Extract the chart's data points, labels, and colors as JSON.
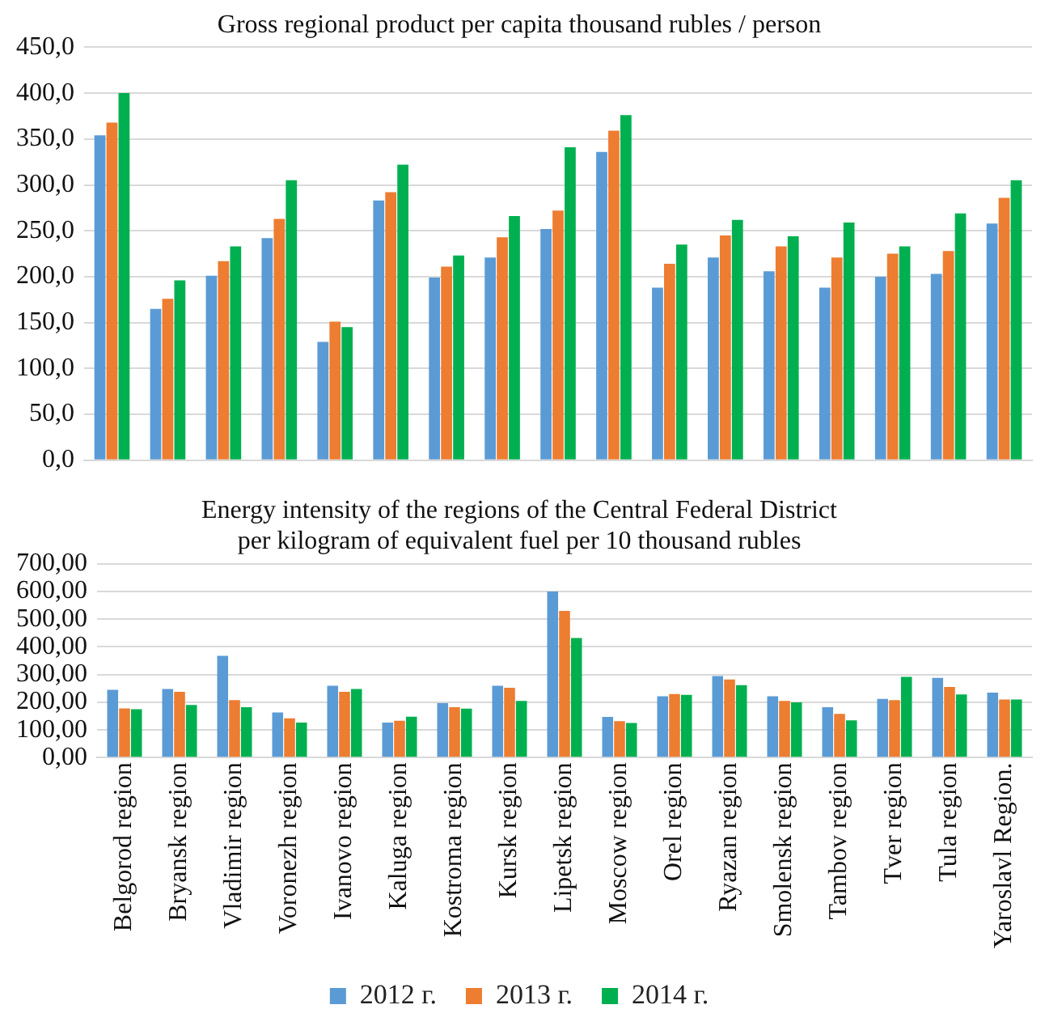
{
  "chart_data": [
    {
      "type": "bar",
      "title": "Gross regional product per capita thousand rubles / person",
      "categories": [
        null,
        null,
        null,
        null,
        null,
        null,
        null,
        null,
        null,
        null,
        null,
        null,
        null,
        null,
        null,
        null,
        null
      ],
      "series": [
        {
          "color": "#5b9bd5",
          "values": [
            354,
            165,
            201,
            242,
            129,
            283,
            199,
            221,
            252,
            336,
            188,
            221,
            206,
            188,
            200,
            203,
            258
          ]
        },
        {
          "color": "#ed7d31",
          "values": [
            368,
            176,
            217,
            263,
            151,
            292,
            211,
            243,
            272,
            359,
            214,
            245,
            233,
            221,
            225,
            228,
            286
          ]
        },
        {
          "color": "#00b050",
          "values": [
            400,
            196,
            233,
            305,
            145,
            322,
            223,
            266,
            341,
            376,
            235,
            262,
            244,
            259,
            233,
            269,
            305
          ]
        }
      ],
      "ylim": [
        0,
        450
      ],
      "yticks": [
        {
          "value": 0,
          "label": "0,0"
        },
        {
          "value": 50,
          "label": "50,0"
        },
        {
          "value": 100,
          "label": "100,0"
        },
        {
          "value": 150,
          "label": "150,0"
        },
        {
          "value": 200,
          "label": "200,0"
        },
        {
          "value": 250,
          "label": "250,0"
        },
        {
          "value": 300,
          "label": "300,0"
        },
        {
          "value": 350,
          "label": "350,0"
        },
        {
          "value": 400,
          "label": "400,0"
        },
        {
          "value": 450,
          "label": "450,0"
        }
      ],
      "grid": "y",
      "legend": false
    },
    {
      "type": "bar",
      "title": "Energy intensity of the regions of the Central Federal District\nper kilogram of equivalent fuel per 10 thousand rubles",
      "categories": [
        "Belgorod region",
        "Bryansk region",
        "Vladimir region",
        "Voronezh region",
        "Ivanovo region",
        "Kaluga region",
        "Kostroma region",
        "Kursk region",
        "Lipetsk region",
        "Moscow region",
        "Orel region",
        "Ryazan region",
        "Smolensk region",
        "Tambov region",
        "Tver region",
        "Tula region",
        "Yaroslavl Region."
      ],
      "series": [
        {
          "name": "2012 г.",
          "color": "#5b9bd5",
          "values": [
            245,
            248,
            368,
            163,
            260,
            127,
            197,
            260,
            600,
            147,
            222,
            295,
            222,
            182,
            212,
            288,
            235
          ]
        },
        {
          "name": "2013 г.",
          "color": "#ed7d31",
          "values": [
            178,
            238,
            208,
            142,
            238,
            133,
            182,
            252,
            530,
            132,
            230,
            282,
            205,
            158,
            208,
            255,
            210
          ]
        },
        {
          "name": "2014 г.",
          "color": "#00b050",
          "values": [
            175,
            190,
            182,
            127,
            248,
            148,
            177,
            205,
            432,
            125,
            227,
            262,
            200,
            135,
            292,
            228,
            210
          ]
        }
      ],
      "ylim": [
        0,
        700
      ],
      "yticks": [
        {
          "value": 0,
          "label": "0,00"
        },
        {
          "value": 100,
          "label": "100,00"
        },
        {
          "value": 200,
          "label": "200,00"
        },
        {
          "value": 300,
          "label": "300,00"
        },
        {
          "value": 400,
          "label": "400,00"
        },
        {
          "value": 500,
          "label": "500,00"
        },
        {
          "value": 600,
          "label": "600,00"
        },
        {
          "value": 700,
          "label": "700,00"
        }
      ],
      "grid": "y",
      "legend": "bottom"
    }
  ]
}
